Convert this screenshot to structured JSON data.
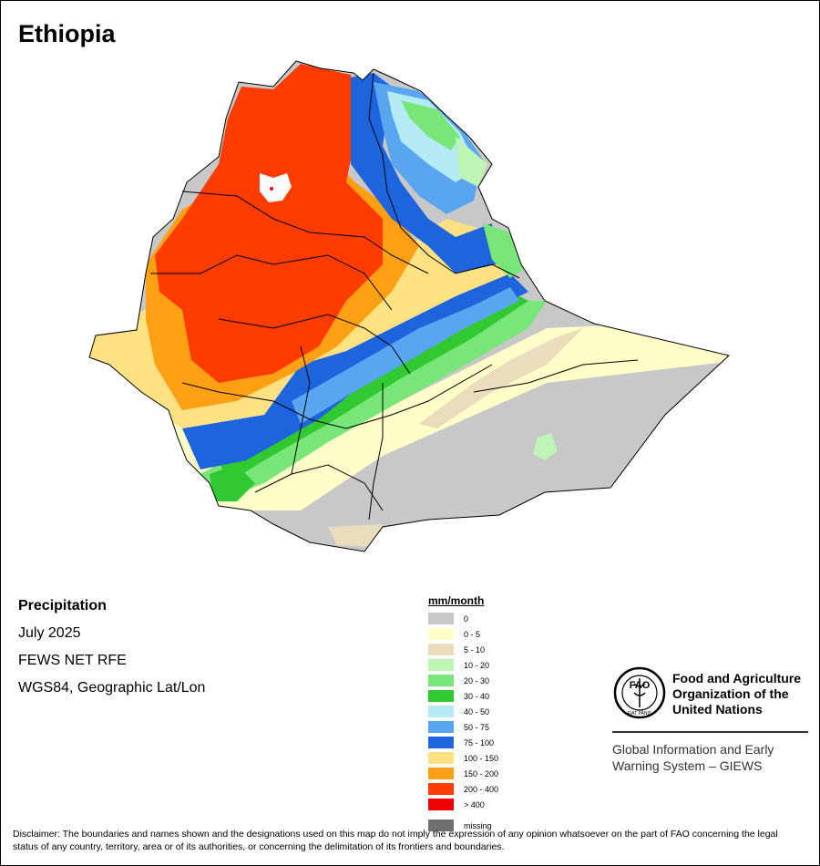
{
  "map": {
    "title": "Ethiopia"
  },
  "info": {
    "variable": "Precipitation",
    "period": "July 2025",
    "source": "FEWS NET RFE",
    "projection": "WGS84, Geographic Lat/Lon"
  },
  "legend": {
    "title": "mm/month",
    "items": [
      {
        "label": "0",
        "color": "#c8c8c8"
      },
      {
        "label": "0 - 5",
        "color": "#fefec8"
      },
      {
        "label": "5 - 10",
        "color": "#ebdcbe"
      },
      {
        "label": "10 - 20",
        "color": "#bef5b4"
      },
      {
        "label": "20 - 30",
        "color": "#78e678"
      },
      {
        "label": "30 - 40",
        "color": "#32c832"
      },
      {
        "label": "40 - 50",
        "color": "#b4ebf5"
      },
      {
        "label": "50 - 75",
        "color": "#5aa5f0"
      },
      {
        "label": "75 - 100",
        "color": "#1e64dc"
      },
      {
        "label": "100 - 150",
        "color": "#fee182"
      },
      {
        "label": "150 - 200",
        "color": "#fea014"
      },
      {
        "label": "200 - 400",
        "color": "#fe3c00"
      },
      {
        "label": "> 400",
        "color": "#f00000"
      },
      {
        "label": "missing",
        "color": "#707070"
      }
    ]
  },
  "logo": {
    "org_name_lines": [
      "Food and Agriculture",
      "Organization of the",
      "United Nations"
    ],
    "system_lines": [
      "Global Information and Early",
      "Warning System – GIEWS"
    ],
    "emblem_text": "FAO",
    "emblem_motto": "FIAT PANIS"
  },
  "disclaimer": "Disclaimer: The boundaries and names shown and the designations used on this map do not imply the expression of any opinion whatsoever on the part of FAO concerning the legal status of any country, territory, area or of its authorities, or concerning the delimitation of its frontiers and boundaries."
}
